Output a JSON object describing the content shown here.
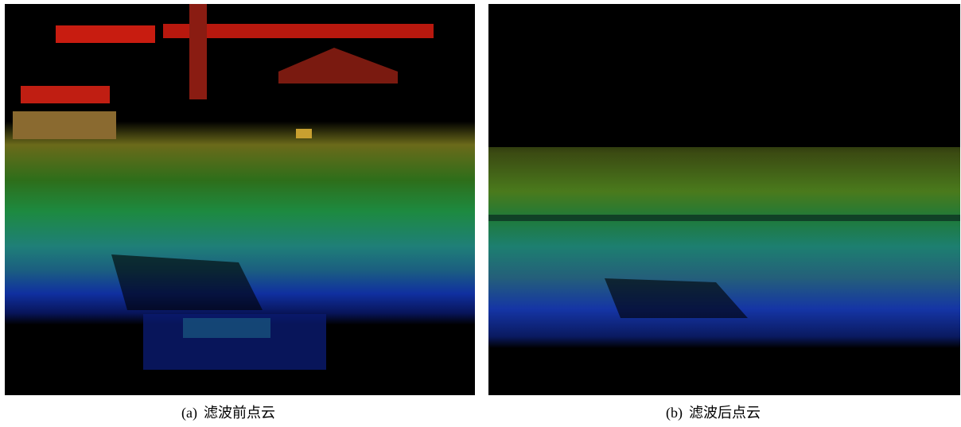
{
  "figures": [
    {
      "label": "(a)",
      "caption": "滤波前点云"
    },
    {
      "label": "(b)",
      "caption": "滤波后点云"
    }
  ]
}
